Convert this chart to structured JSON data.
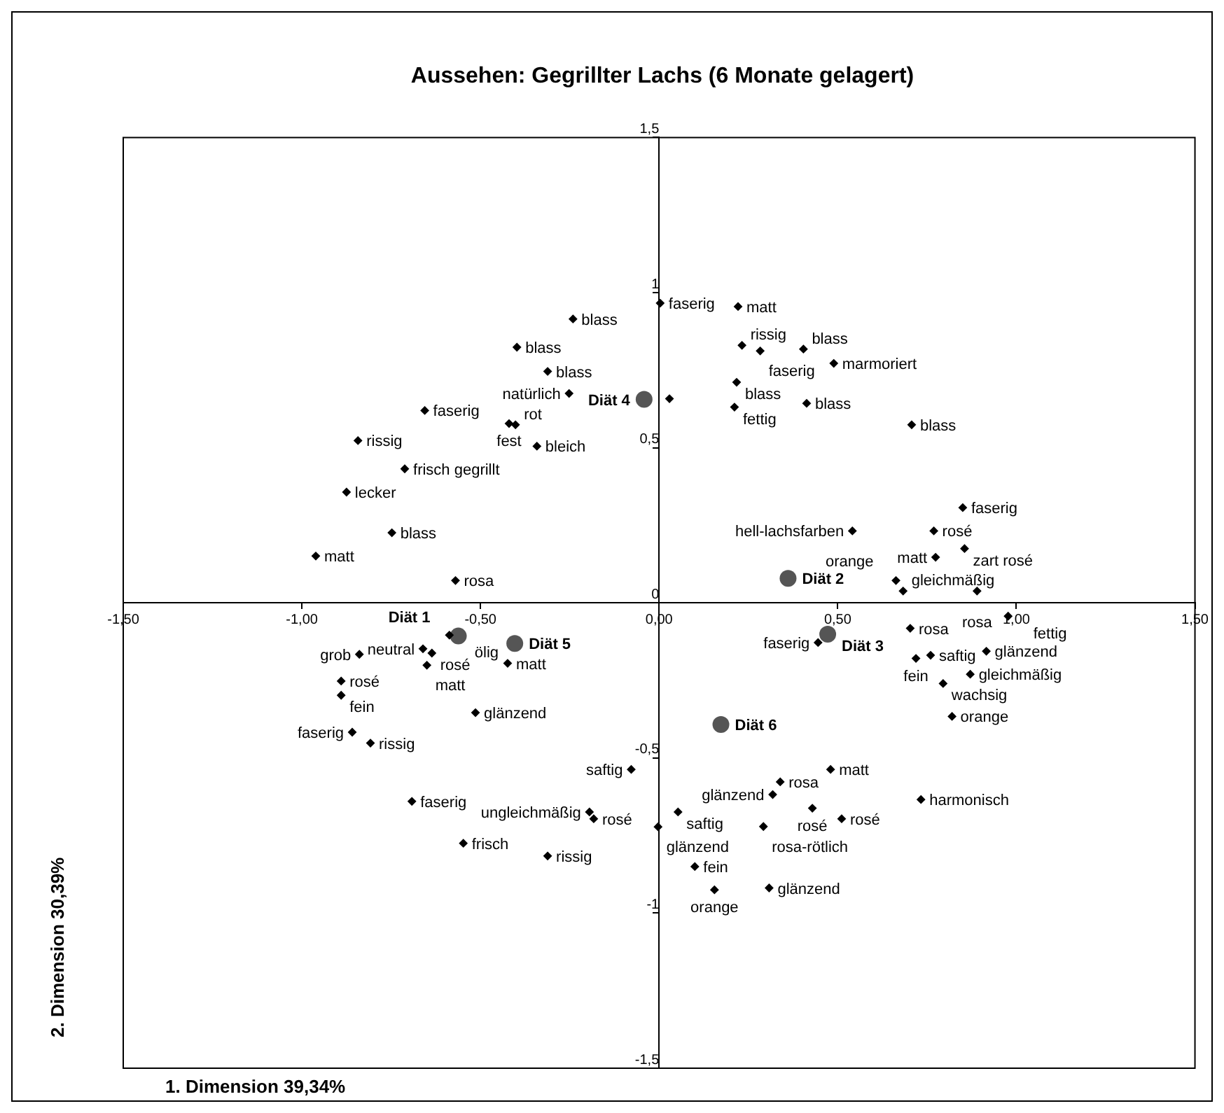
{
  "chart_data": {
    "type": "scatter",
    "title": "Aussehen: Gegrillter Lachs (6 Monate gelagert)",
    "xlabel": "1. Dimension 39,34%",
    "ylabel": "2. Dimension 30,39%",
    "xlim": [
      -1.5,
      1.5
    ],
    "ylim": [
      -1.5,
      1.5
    ],
    "xticks": [
      {
        "value": -1.5,
        "label": "-1,50"
      },
      {
        "value": -1,
        "label": "-1,00"
      },
      {
        "value": -0.5,
        "label": "-0,50"
      },
      {
        "value": 0,
        "label": "0,00"
      },
      {
        "value": 0.5,
        "label": "0,50"
      },
      {
        "value": 1,
        "label": "1,00"
      },
      {
        "value": 1.5,
        "label": "1,50"
      }
    ],
    "yticks": [
      {
        "value": -1.5,
        "label": "-1,5"
      },
      -1,
      {
        "value": -0.5,
        "label": "-0,5"
      },
      0,
      {
        "value": 0.5,
        "label": "0,5"
      },
      1,
      {
        "value": 1.5,
        "label": "1,5"
      }
    ],
    "legend": false,
    "series": [
      {
        "color": "#000000",
        "marker": "diamond",
        "x": [
          -0.241,
          -0.398,
          -0.312,
          -0.252,
          -0.656,
          -0.42,
          -0.402,
          -0.843,
          -0.342,
          -0.712,
          -0.875,
          -0.748,
          -0.961,
          -0.57,
          0.003,
          0.221,
          0.232,
          0.283,
          0.404,
          0.489,
          0.217,
          0.029,
          0.211,
          0.413,
          0.707,
          0.85,
          0.541,
          0.769,
          0.855,
          0.774,
          0.663,
          0.683,
          0.89,
          0.977,
          0.703,
          0.445,
          0.76,
          0.719,
          0.916,
          0.871,
          0.795,
          0.82,
          0.48,
          0.339,
          0.318,
          0.733,
          0.429,
          0.511,
          0.053,
          -0.003,
          0.292,
          0.1,
          0.155,
          0.308,
          -0.078,
          -0.195,
          -0.183,
          -0.587,
          -0.661,
          -0.636,
          -0.65,
          -0.424,
          -0.839,
          -0.89,
          -0.89,
          -0.514,
          -0.859,
          -0.808,
          -0.692,
          -0.548,
          -0.312
        ],
        "values": [
          0.915,
          0.824,
          0.746,
          0.675,
          0.62,
          0.578,
          0.574,
          0.523,
          0.505,
          0.432,
          0.357,
          0.226,
          0.151,
          0.072,
          0.966,
          0.955,
          0.83,
          0.812,
          0.818,
          0.772,
          0.711,
          0.658,
          0.631,
          0.643,
          0.574,
          0.307,
          0.232,
          0.232,
          0.175,
          0.147,
          0.072,
          0.038,
          0.038,
          -0.043,
          -0.082,
          -0.128,
          -0.169,
          -0.179,
          -0.156,
          -0.23,
          -0.26,
          -0.366,
          -0.537,
          -0.577,
          -0.618,
          -0.634,
          -0.662,
          -0.696,
          -0.674,
          -0.722,
          -0.721,
          -0.85,
          -0.925,
          -0.919,
          -0.537,
          -0.674,
          -0.696,
          -0.104,
          -0.148,
          -0.162,
          -0.201,
          -0.195,
          -0.166,
          -0.252,
          -0.298,
          -0.354,
          -0.417,
          -0.452,
          -0.64,
          -0.775,
          -0.816
        ]
      },
      {
        "color": "#555555",
        "marker": "circle",
        "x": [
          -0.562,
          0.361,
          0.472,
          -0.042,
          -0.404,
          0.173
        ],
        "values": [
          -0.107,
          0.079,
          -0.101,
          0.656,
          -0.131,
          -0.392
        ]
      }
    ],
    "annotations": [
      {
        "text": "blass",
        "x": -0.241,
        "y": 0.915
      },
      {
        "text": "blass",
        "x": -0.398,
        "y": 0.824
      },
      {
        "text": "blass",
        "x": -0.312,
        "y": 0.746
      },
      {
        "text": "natürlich",
        "x": -0.252,
        "y": 0.675
      },
      {
        "text": "faserig",
        "x": -0.656,
        "y": 0.62
      },
      {
        "text": "fest",
        "x": -0.42,
        "y": 0.578
      },
      {
        "text": "rot",
        "x": -0.402,
        "y": 0.574
      },
      {
        "text": "rissig",
        "x": -0.843,
        "y": 0.523
      },
      {
        "text": "bleich",
        "x": -0.342,
        "y": 0.505
      },
      {
        "text": "frisch gegrillt",
        "x": -0.712,
        "y": 0.432
      },
      {
        "text": "lecker",
        "x": -0.875,
        "y": 0.357
      },
      {
        "text": "blass",
        "x": -0.748,
        "y": 0.226
      },
      {
        "text": "matt",
        "x": -0.961,
        "y": 0.151
      },
      {
        "text": "rosa",
        "x": -0.57,
        "y": 0.072
      },
      {
        "text": "faserig",
        "x": 0.003,
        "y": 0.966
      },
      {
        "text": "matt",
        "x": 0.221,
        "y": 0.955
      },
      {
        "text": "rissig",
        "x": 0.232,
        "y": 0.83
      },
      {
        "text": "faserig",
        "x": 0.283,
        "y": 0.812
      },
      {
        "text": "blass",
        "x": 0.404,
        "y": 0.818
      },
      {
        "text": "marmoriert",
        "x": 0.489,
        "y": 0.772
      },
      {
        "text": "blass",
        "x": 0.217,
        "y": 0.711
      },
      {
        "text": "fettig",
        "x": 0.211,
        "y": 0.631
      },
      {
        "text": "blass",
        "x": 0.413,
        "y": 0.643
      },
      {
        "text": "blass",
        "x": 0.707,
        "y": 0.574
      },
      {
        "text": "faserig",
        "x": 0.85,
        "y": 0.307
      },
      {
        "text": "hell-lachsfarben",
        "x": 0.541,
        "y": 0.232
      },
      {
        "text": "rosé",
        "x": 0.769,
        "y": 0.232
      },
      {
        "text": "zart rosé",
        "x": 0.855,
        "y": 0.175
      },
      {
        "text": "matt",
        "x": 0.774,
        "y": 0.147
      },
      {
        "text": "orange",
        "x": 0.663,
        "y": 0.072
      },
      {
        "text": "gleichmäßig",
        "x": 0.683,
        "y": 0.038
      },
      {
        "text": "rosa",
        "x": 0.89,
        "y": 0.038
      },
      {
        "text": "fettig",
        "x": 0.977,
        "y": -0.043
      },
      {
        "text": "rosa",
        "x": 0.703,
        "y": -0.082
      },
      {
        "text": "faserig",
        "x": 0.445,
        "y": -0.128
      },
      {
        "text": "saftig",
        "x": 0.76,
        "y": -0.169
      },
      {
        "text": "fein",
        "x": 0.719,
        "y": -0.179
      },
      {
        "text": "glänzend",
        "x": 0.916,
        "y": -0.156
      },
      {
        "text": "gleichmäßig",
        "x": 0.871,
        "y": -0.23
      },
      {
        "text": "wachsig",
        "x": 0.795,
        "y": -0.26
      },
      {
        "text": "orange",
        "x": 0.82,
        "y": -0.366
      },
      {
        "text": "matt",
        "x": 0.48,
        "y": -0.537
      },
      {
        "text": "rosa",
        "x": 0.339,
        "y": -0.577
      },
      {
        "text": "glänzend",
        "x": 0.318,
        "y": -0.618
      },
      {
        "text": "harmonisch",
        "x": 0.733,
        "y": -0.634
      },
      {
        "text": "rosé",
        "x": 0.429,
        "y": -0.662
      },
      {
        "text": "rosé",
        "x": 0.511,
        "y": -0.696
      },
      {
        "text": "saftig",
        "x": 0.053,
        "y": -0.674
      },
      {
        "text": "glänzend",
        "x": -0.003,
        "y": -0.722
      },
      {
        "text": "rosa-rötlich",
        "x": 0.292,
        "y": -0.721
      },
      {
        "text": "fein",
        "x": 0.1,
        "y": -0.85
      },
      {
        "text": "orange",
        "x": 0.155,
        "y": -0.925
      },
      {
        "text": "glänzend",
        "x": 0.308,
        "y": -0.919
      },
      {
        "text": "saftig",
        "x": -0.078,
        "y": -0.537
      },
      {
        "text": "ungleichmäßig",
        "x": -0.195,
        "y": -0.674
      },
      {
        "text": "rosé",
        "x": -0.183,
        "y": -0.696
      },
      {
        "text": "ölig",
        "x": -0.587,
        "y": -0.104
      },
      {
        "text": "neutral",
        "x": -0.661,
        "y": -0.148
      },
      {
        "text": "rosé",
        "x": -0.636,
        "y": -0.162
      },
      {
        "text": "matt",
        "x": -0.65,
        "y": -0.201
      },
      {
        "text": "matt",
        "x": -0.424,
        "y": -0.195
      },
      {
        "text": "grob",
        "x": -0.839,
        "y": -0.166
      },
      {
        "text": "rosé",
        "x": -0.89,
        "y": -0.252
      },
      {
        "text": "fein",
        "x": -0.89,
        "y": -0.298
      },
      {
        "text": "glänzend",
        "x": -0.514,
        "y": -0.354
      },
      {
        "text": "faserig",
        "x": -0.859,
        "y": -0.417
      },
      {
        "text": "rissig",
        "x": -0.808,
        "y": -0.452
      },
      {
        "text": "faserig",
        "x": -0.692,
        "y": -0.64
      },
      {
        "text": "frisch",
        "x": -0.548,
        "y": -0.775
      },
      {
        "text": "rissig",
        "x": -0.312,
        "y": -0.816
      },
      {
        "text": "Diät 1",
        "x": -0.562,
        "y": -0.107
      },
      {
        "text": "Diät 2",
        "x": 0.361,
        "y": 0.079
      },
      {
        "text": "Diät 3",
        "x": 0.472,
        "y": -0.101
      },
      {
        "text": "Diät 4",
        "x": -0.042,
        "y": 0.656
      },
      {
        "text": "Diät 5",
        "x": -0.404,
        "y": -0.131
      },
      {
        "text": "Diät 6",
        "x": 0.173,
        "y": -0.392
      }
    ]
  }
}
